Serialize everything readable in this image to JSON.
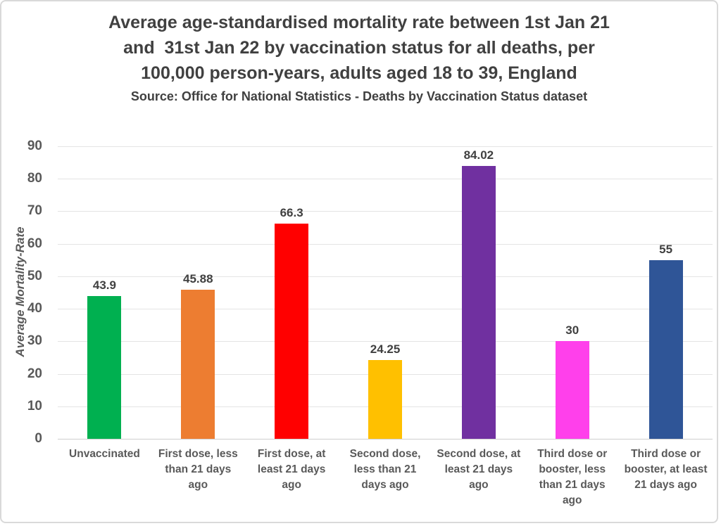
{
  "title": {
    "line1": "Average age-standardised mortality rate between 1st Jan 21",
    "line2": "and  31st Jan 22 by vaccination status for all deaths, per",
    "line3": "100,000 person-years, adults aged 18 to 39, England",
    "source": "Source: Office for National Statistics - Deaths by Vaccination Status dataset"
  },
  "chart_data": {
    "type": "bar",
    "categories": [
      "Unvaccinated",
      "First dose, less than 21 days ago",
      "First dose, at least 21 days ago",
      "Second dose, less than 21 days ago",
      "Second dose, at least 21 days ago",
      "Third dose or booster, less than 21 days ago",
      "Third dose or booster, at least 21 days ago"
    ],
    "values": [
      43.9,
      45.88,
      66.3,
      24.25,
      84.02,
      30,
      55
    ],
    "value_labels": [
      "43.9",
      "45.88",
      "66.3",
      "24.25",
      "84.02",
      "30",
      "55"
    ],
    "colors": [
      "#00B050",
      "#ED7D31",
      "#FF0000",
      "#FFC000",
      "#7030A0",
      "#FF40EB",
      "#2F5597"
    ],
    "title": "Average age-standardised mortality rate between 1st Jan 21 and 31st Jan 22 by vaccination status for all deaths, per 100,000 person-years, adults aged 18 to 39, England",
    "xlabel": "",
    "ylabel": "Average Mortality-Rate",
    "ylim": [
      0,
      90
    ],
    "yticks": [
      0,
      10,
      20,
      30,
      40,
      50,
      60,
      70,
      80,
      90
    ],
    "grid": "horizontal",
    "legend": "none"
  },
  "palette": {
    "title_text": "#404040",
    "axis_text": "#595959",
    "gridline": "#E4E4E4",
    "frame_border": "#D9D9D9"
  }
}
